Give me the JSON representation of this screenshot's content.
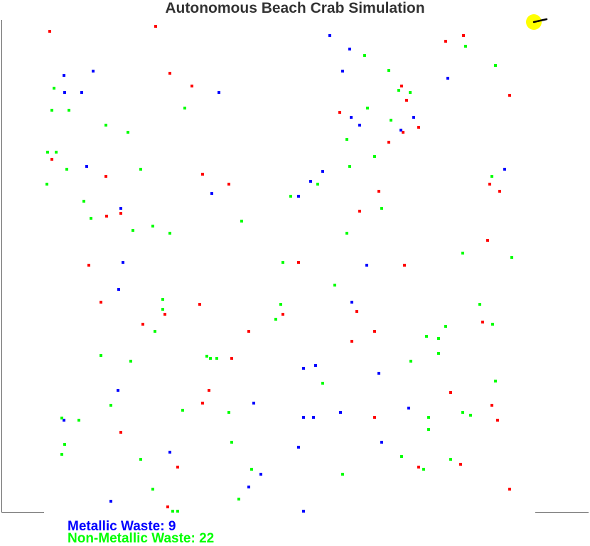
{
  "title": "Autonomous Beach Crab Simulation",
  "colors": {
    "metallic": "#0000ff",
    "non_metallic": "#00ff00",
    "other": "#ff0000",
    "crab": "#ffff00",
    "axis": "#555555"
  },
  "stats": {
    "metallic_label": "Metallic Waste: 9",
    "non_metallic_label": "Non-Metallic Waste: 22"
  },
  "crab": {
    "icon": "crab-icon"
  },
  "waste_items": {
    "red": [
      [
        70,
        44
      ],
      [
        219,
        37
      ],
      [
        239,
        103
      ],
      [
        270,
        121
      ],
      [
        627,
        58
      ],
      [
        652,
        50
      ],
      [
        717,
        134
      ],
      [
        565,
        121
      ],
      [
        572,
        141
      ],
      [
        589,
        179
      ],
      [
        567,
        186
      ],
      [
        547,
        200
      ],
      [
        478,
        158
      ],
      [
        73,
        224
      ],
      [
        149,
        248
      ],
      [
        285,
        245
      ],
      [
        322,
        259
      ],
      [
        689,
        259
      ],
      [
        703,
        269
      ],
      [
        533,
        269
      ],
      [
        506,
        297
      ],
      [
        170,
        300
      ],
      [
        150,
        304
      ],
      [
        686,
        338
      ],
      [
        125,
        373
      ],
      [
        420,
        369
      ],
      [
        569,
        373
      ],
      [
        142,
        425
      ],
      [
        281,
        428
      ],
      [
        232,
        442
      ],
      [
        398,
        442
      ],
      [
        502,
        438
      ],
      [
        679,
        453
      ],
      [
        201,
        456
      ],
      [
        350,
        466
      ],
      [
        527,
        466
      ],
      [
        495,
        480
      ],
      [
        326,
        504
      ],
      [
        294,
        549
      ],
      [
        634,
        552
      ],
      [
        285,
        567
      ],
      [
        692,
        570
      ],
      [
        700,
        591
      ],
      [
        527,
        587
      ],
      [
        170,
        608
      ],
      [
        250,
        657
      ],
      [
        589,
        657
      ],
      [
        648,
        653
      ],
      [
        717,
        688
      ],
      [
        236,
        713
      ]
    ],
    "blue": [
      [
        464,
        50
      ],
      [
        492,
        69
      ],
      [
        90,
        106
      ],
      [
        131,
        100
      ],
      [
        482,
        100
      ],
      [
        630,
        110
      ],
      [
        91,
        130
      ],
      [
        115,
        130
      ],
      [
        308,
        130
      ],
      [
        494,
        165
      ],
      [
        582,
        165
      ],
      [
        506,
        176
      ],
      [
        564,
        183
      ],
      [
        122,
        234
      ],
      [
        454,
        241
      ],
      [
        437,
        255
      ],
      [
        710,
        238
      ],
      [
        298,
        272
      ],
      [
        420,
        276
      ],
      [
        170,
        293
      ],
      [
        173,
        369
      ],
      [
        516,
        373
      ],
      [
        167,
        407
      ],
      [
        495,
        425
      ],
      [
        444,
        514
      ],
      [
        427,
        518
      ],
      [
        533,
        525
      ],
      [
        166,
        549
      ],
      [
        357,
        567
      ],
      [
        479,
        580
      ],
      [
        575,
        574
      ],
      [
        90,
        591
      ],
      [
        427,
        587
      ],
      [
        441,
        587
      ],
      [
        537,
        622
      ],
      [
        420,
        629
      ],
      [
        239,
        636
      ],
      [
        367,
        667
      ],
      [
        350,
        685
      ],
      [
        156,
        705
      ],
      [
        427,
        719
      ]
    ],
    "green": [
      [
        513,
        78
      ],
      [
        655,
        65
      ],
      [
        697,
        92
      ],
      [
        547,
        99
      ],
      [
        76,
        124
      ],
      [
        561,
        127
      ],
      [
        577,
        130
      ],
      [
        73,
        155
      ],
      [
        97,
        155
      ],
      [
        260,
        152
      ],
      [
        517,
        152
      ],
      [
        550,
        169
      ],
      [
        149,
        176
      ],
      [
        180,
        186
      ],
      [
        488,
        196
      ],
      [
        67,
        214
      ],
      [
        79,
        214
      ],
      [
        527,
        220
      ],
      [
        198,
        238
      ],
      [
        492,
        234
      ],
      [
        94,
        238
      ],
      [
        692,
        248
      ],
      [
        66,
        259
      ],
      [
        409,
        276
      ],
      [
        447,
        259
      ],
      [
        118,
        283
      ],
      [
        537,
        293
      ],
      [
        128,
        307
      ],
      [
        340,
        311
      ],
      [
        215,
        318
      ],
      [
        187,
        324
      ],
      [
        239,
        328
      ],
      [
        488,
        328
      ],
      [
        651,
        356
      ],
      [
        720,
        362
      ],
      [
        398,
        369
      ],
      [
        471,
        401
      ],
      [
        229,
        421
      ],
      [
        675,
        428
      ],
      [
        395,
        428
      ],
      [
        229,
        435
      ],
      [
        388,
        449
      ],
      [
        627,
        459
      ],
      [
        693,
        456
      ],
      [
        218,
        466
      ],
      [
        600,
        473
      ],
      [
        617,
        476
      ],
      [
        617,
        497
      ],
      [
        142,
        500
      ],
      [
        291,
        501
      ],
      [
        296,
        504
      ],
      [
        305,
        504
      ],
      [
        184,
        508
      ],
      [
        578,
        508
      ],
      [
        697,
        536
      ],
      [
        454,
        539
      ],
      [
        156,
        570
      ],
      [
        257,
        577
      ],
      [
        322,
        580
      ],
      [
        651,
        580
      ],
      [
        662,
        584
      ],
      [
        87,
        588
      ],
      [
        111,
        591
      ],
      [
        603,
        587
      ],
      [
        603,
        604
      ],
      [
        326,
        622
      ],
      [
        91,
        625
      ],
      [
        87,
        639
      ],
      [
        565,
        642
      ],
      [
        198,
        646
      ],
      [
        634,
        646
      ],
      [
        596,
        660
      ],
      [
        354,
        660
      ],
      [
        482,
        667
      ],
      [
        215,
        688
      ],
      [
        336,
        702
      ],
      [
        243,
        719
      ],
      [
        250,
        719
      ]
    ]
  }
}
